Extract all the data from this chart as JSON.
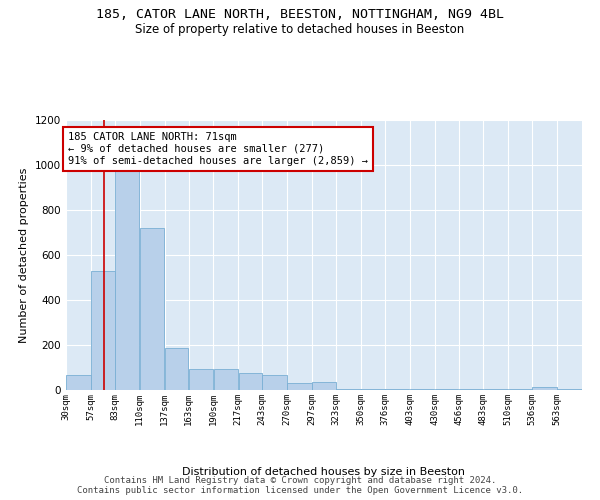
{
  "title": "185, CATOR LANE NORTH, BEESTON, NOTTINGHAM, NG9 4BL",
  "subtitle": "Size of property relative to detached houses in Beeston",
  "xlabel": "Distribution of detached houses by size in Beeston",
  "ylabel": "Number of detached properties",
  "bar_color": "#b8d0ea",
  "bar_edge_color": "#7aafd4",
  "background_color": "#dce9f5",
  "grid_color": "#ffffff",
  "annotation_text": "185 CATOR LANE NORTH: 71sqm\n← 9% of detached houses are smaller (277)\n91% of semi-detached houses are larger (2,859) →",
  "vline_x": 71,
  "vline_color": "#cc0000",
  "categories": [
    "30sqm",
    "57sqm",
    "83sqm",
    "110sqm",
    "137sqm",
    "163sqm",
    "190sqm",
    "217sqm",
    "243sqm",
    "270sqm",
    "297sqm",
    "323sqm",
    "350sqm",
    "376sqm",
    "403sqm",
    "430sqm",
    "456sqm",
    "483sqm",
    "510sqm",
    "536sqm",
    "563sqm"
  ],
  "bin_edges": [
    30,
    57,
    83,
    110,
    137,
    163,
    190,
    217,
    243,
    270,
    297,
    323,
    350,
    376,
    403,
    430,
    456,
    483,
    510,
    536,
    563,
    590
  ],
  "values": [
    65,
    530,
    1040,
    720,
    185,
    95,
    95,
    75,
    65,
    30,
    35,
    5,
    5,
    5,
    5,
    5,
    5,
    5,
    5,
    15,
    5
  ],
  "ylim": [
    0,
    1200
  ],
  "yticks": [
    0,
    200,
    400,
    600,
    800,
    1000,
    1200
  ],
  "footer": "Contains HM Land Registry data © Crown copyright and database right 2024.\nContains public sector information licensed under the Open Government Licence v3.0.",
  "title_fontsize": 9.5,
  "subtitle_fontsize": 8.5,
  "annotation_fontsize": 7.5,
  "footer_fontsize": 6.5,
  "ylabel_fontsize": 8,
  "xlabel_fontsize": 8,
  "ytick_fontsize": 7.5,
  "xtick_fontsize": 6.5
}
